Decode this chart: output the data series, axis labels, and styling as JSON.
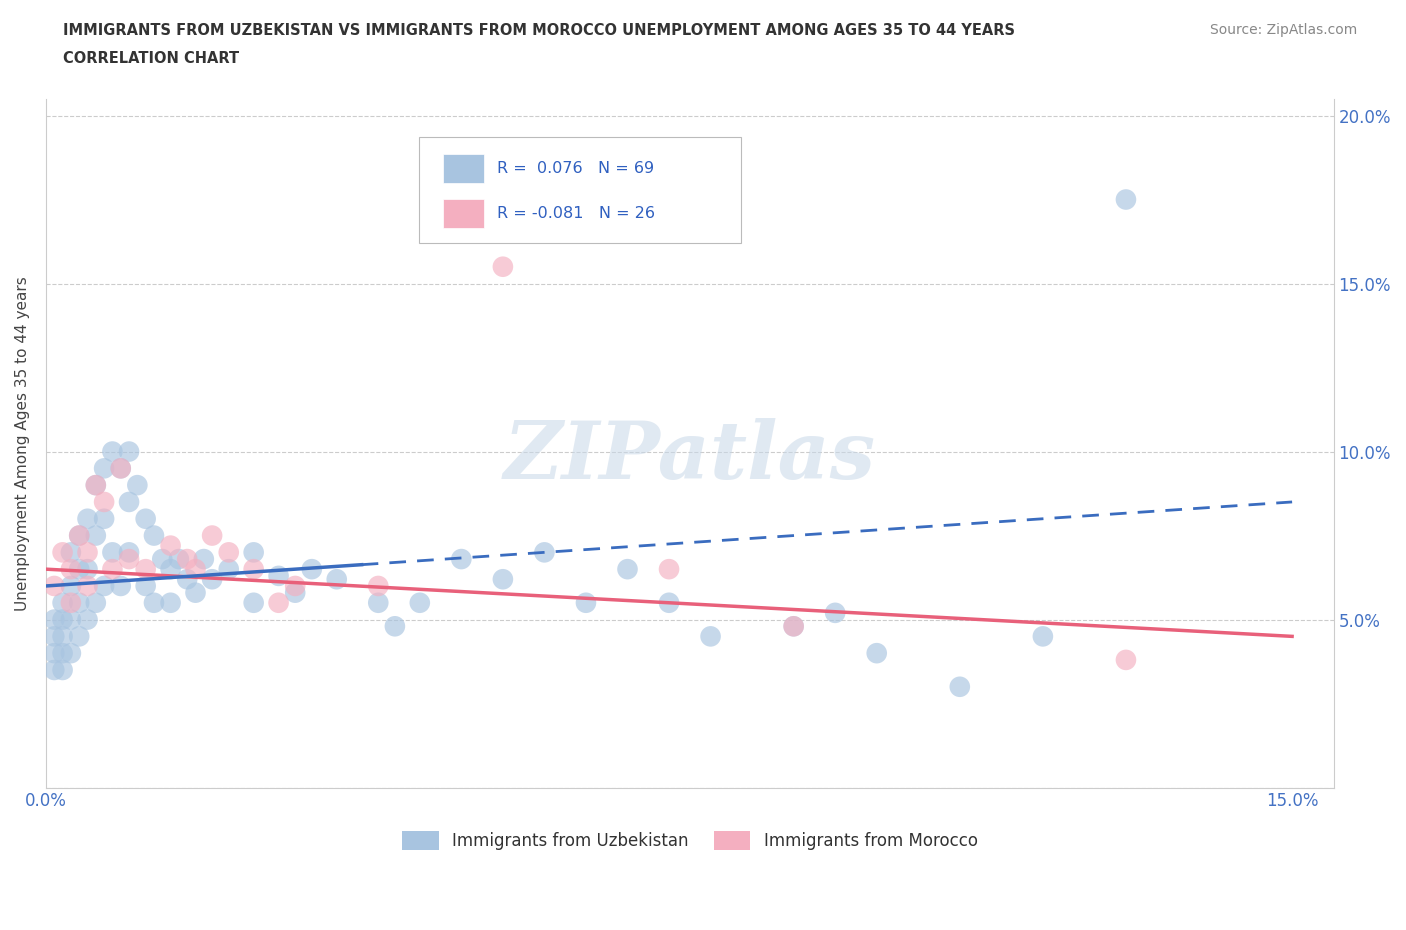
{
  "title_line1": "IMMIGRANTS FROM UZBEKISTAN VS IMMIGRANTS FROM MOROCCO UNEMPLOYMENT AMONG AGES 35 TO 44 YEARS",
  "title_line2": "CORRELATION CHART",
  "source_text": "Source: ZipAtlas.com",
  "ylabel": "Unemployment Among Ages 35 to 44 years",
  "xlim": [
    0.0,
    0.155
  ],
  "ylim": [
    0.0,
    0.205
  ],
  "xticks": [
    0.0,
    0.05,
    0.1,
    0.15
  ],
  "xticklabels": [
    "0.0%",
    "",
    "",
    "15.0%"
  ],
  "yticks": [
    0.0,
    0.05,
    0.1,
    0.15,
    0.2
  ],
  "yticklabels_right": [
    "",
    "5.0%",
    "10.0%",
    "15.0%",
    "20.0%"
  ],
  "uzbekistan_color": "#a8c4e0",
  "morocco_color": "#f4afc0",
  "uzbekistan_line_color": "#3a6cbf",
  "morocco_line_color": "#e8607a",
  "R_uzbekistan": 0.076,
  "N_uzbekistan": 69,
  "R_morocco": -0.081,
  "N_morocco": 26,
  "watermark": "ZIPatlas",
  "legend_label_uzbekistan": "Immigrants from Uzbekistan",
  "legend_label_morocco": "Immigrants from Morocco",
  "background_color": "#ffffff",
  "grid_color": "#cccccc",
  "uzb_line_start_y": 0.06,
  "uzb_line_end_y": 0.085,
  "mor_line_start_y": 0.065,
  "mor_line_end_y": 0.045
}
